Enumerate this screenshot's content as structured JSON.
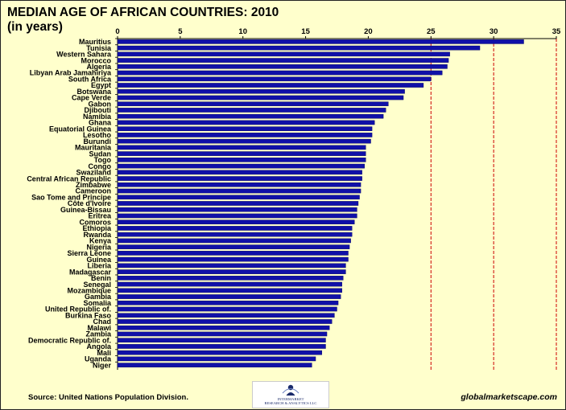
{
  "title": "MEDIAN AGE OF AFRICAN COUNTRIES: 2010\n(in years)",
  "footer": {
    "source": "Source: United Nations Population Division.",
    "website": "globalmarketscape.com",
    "logo_text": "INTERMARKET\nRESEARCH & ANALYTICS LLC"
  },
  "colors": {
    "background": "#FFFFCC",
    "bar_fill": "#1010A8",
    "bar_stroke": "#000060",
    "reference_lines": "#CC0000"
  },
  "chart_data": {
    "type": "bar",
    "orientation": "horizontal",
    "x_axis_position": "top",
    "xlim": [
      0,
      35
    ],
    "xticks": [
      0,
      5,
      10,
      15,
      20,
      25,
      30,
      35
    ],
    "reference_lines_at": [
      25,
      30,
      35
    ],
    "categories": [
      "Mauritius",
      "Tunisia",
      "Western Sahara",
      "Morocco",
      "Algeria",
      "Libyan Arab Jamahiriya",
      "South Africa",
      "Egypt",
      "Botswana",
      "Cape Verde",
      "Gabon",
      "Djibouti",
      "Namibia",
      "Ghana",
      "Equatorial Guinea",
      "Lesotho",
      "Burundi",
      "Mauritania",
      "Sudan",
      "Togo",
      "Congo",
      "Swaziland",
      "Central African Republic",
      "Zimbabwe",
      "Cameroon",
      "Sao Tome and Principe",
      "Côte d'Ivoire",
      "Guinea-Bissau",
      "Eritrea",
      "Comoros",
      "Ethiopia",
      "Rwanda",
      "Kenya",
      "Nigeria",
      "Sierra Leone",
      "Guinea",
      "Liberia",
      "Madagascar",
      "Benin",
      "Senegal",
      "Mozambique",
      "Gambia",
      "Somalia",
      "United Republic of.",
      "Burkina Faso",
      "Chad",
      "Malawi",
      "Zambia",
      "Democratic Republic of.",
      "Angola",
      "Mali",
      "Uganda",
      "Niger"
    ],
    "values": [
      32.4,
      28.9,
      26.5,
      26.4,
      26.3,
      25.9,
      25.0,
      24.4,
      22.9,
      22.8,
      21.6,
      21.4,
      21.2,
      20.5,
      20.3,
      20.3,
      20.2,
      19.8,
      19.8,
      19.8,
      19.7,
      19.5,
      19.5,
      19.4,
      19.4,
      19.3,
      19.2,
      19.1,
      19.1,
      18.9,
      18.7,
      18.7,
      18.6,
      18.5,
      18.4,
      18.4,
      18.2,
      18.2,
      18.0,
      17.9,
      17.9,
      17.8,
      17.6,
      17.5,
      17.3,
      17.1,
      16.9,
      16.7,
      16.6,
      16.6,
      16.3,
      15.8,
      15.5
    ]
  }
}
